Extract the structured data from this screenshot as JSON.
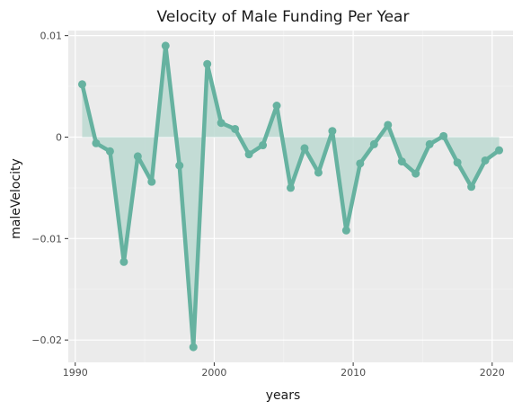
{
  "chart_data": {
    "type": "line",
    "title": "Velocity of Male Funding Per Year",
    "xlabel": "years",
    "ylabel": "maleVelocity",
    "xlim": [
      1989.5,
      2021.5
    ],
    "ylim": [
      -0.0222,
      0.0105
    ],
    "x_ticks": [
      {
        "value": 1990,
        "label": "1990"
      },
      {
        "value": 2000,
        "label": "2000"
      },
      {
        "value": 2010,
        "label": "2010"
      },
      {
        "value": 2020,
        "label": "2020"
      }
    ],
    "y_ticks": [
      {
        "value": 0.01,
        "label": "0.01"
      },
      {
        "value": 0,
        "label": "0"
      },
      {
        "value": -0.01,
        "label": "−0.01"
      },
      {
        "value": -0.02,
        "label": "−0.02"
      }
    ],
    "grid": true,
    "background_color": "#ebebeb",
    "line_color": "#66b2a0",
    "fill_color": "#bcd9d1",
    "series": [
      {
        "x": [
          1990.5,
          1991.5,
          1992.5,
          1993.5,
          1994.5,
          1995.5,
          1996.5,
          1997.5,
          1998.5,
          1999.5,
          2000.5,
          2001.5,
          2002.5,
          2003.5,
          2004.5,
          2005.5,
          2006.5,
          2007.5,
          2008.5,
          2009.5,
          2010.5,
          2011.5,
          2012.5,
          2013.5,
          2014.5,
          2015.5,
          2016.5,
          2017.5,
          2018.5,
          2019.5,
          2020.5
        ],
        "values": [
          0.0052,
          -0.0006,
          -0.0014,
          -0.0123,
          -0.0019,
          -0.0044,
          0.009,
          -0.0028,
          -0.0207,
          0.0072,
          0.0014,
          0.0008,
          -0.0017,
          -0.0008,
          0.0031,
          -0.005,
          -0.0011,
          -0.0035,
          0.0006,
          -0.0092,
          -0.0026,
          -0.0007,
          0.0012,
          -0.0024,
          -0.0036,
          -0.0007,
          0.0001,
          -0.0025,
          -0.0049,
          -0.0023,
          -0.0013
        ]
      }
    ]
  }
}
